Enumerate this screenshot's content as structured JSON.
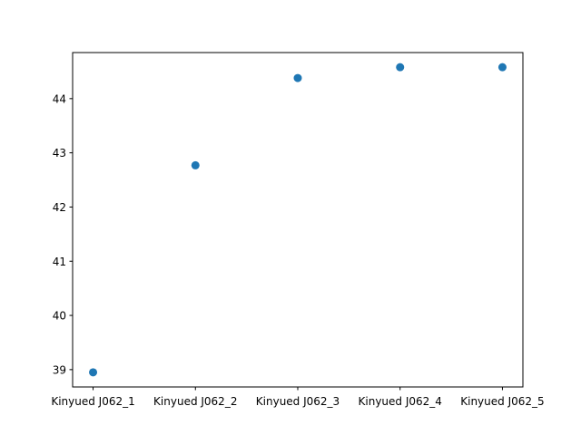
{
  "chart_data": {
    "type": "scatter",
    "title": "",
    "xlabel": "",
    "ylabel": "",
    "categories": [
      "Kinyued J062_1",
      "Kinyued J062_2",
      "Kinyued J062_3",
      "Kinyued J062_4",
      "Kinyued J062_5"
    ],
    "series": [
      {
        "values": [
          38.95,
          42.77,
          44.38,
          44.58,
          44.58
        ],
        "color": "#1f77b4"
      }
    ],
    "ylim": [
      38.68,
      44.85
    ],
    "yticks": [
      39,
      40,
      41,
      42,
      43,
      44
    ],
    "grid": false,
    "legend": "none"
  }
}
